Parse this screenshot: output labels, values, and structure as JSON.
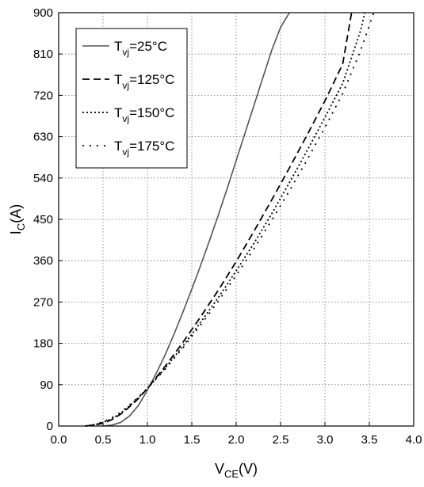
{
  "chart_data": {
    "type": "line",
    "title": "",
    "xlabel": "V",
    "xlabel_sub": "CE",
    "xlabel_unit": "(V)",
    "ylabel": "I",
    "ylabel_sub": "C",
    "ylabel_unit": "(A)",
    "xlim": [
      0,
      4
    ],
    "ylim": [
      0,
      900
    ],
    "xticks": [
      0,
      0.5,
      1,
      1.5,
      2,
      2.5,
      3,
      3.5,
      4
    ],
    "xtick_labels": [
      "0.0",
      "0.5",
      "1.0",
      "1.5",
      "2.0",
      "2.5",
      "3.0",
      "3.5",
      "4.0"
    ],
    "yticks": [
      0,
      90,
      180,
      270,
      360,
      450,
      540,
      630,
      720,
      810,
      900
    ],
    "ytick_labels": [
      "0",
      "90",
      "180",
      "270",
      "360",
      "450",
      "540",
      "630",
      "720",
      "810",
      "900"
    ],
    "grid": true,
    "legend_position": "top-left",
    "series": [
      {
        "name_main": "T",
        "name_sub": "vj",
        "name_rest": "=25°C",
        "style": "solid",
        "color": "#555555",
        "x": [
          0.5,
          0.6,
          0.7,
          0.8,
          0.9,
          1.0,
          1.1,
          1.2,
          1.3,
          1.4,
          1.5,
          1.6,
          1.7,
          1.8,
          1.9,
          2.0,
          2.1,
          2.2,
          2.3,
          2.4,
          2.5,
          2.6
        ],
        "y": [
          0,
          2,
          8,
          22,
          45,
          78,
          115,
          155,
          200,
          248,
          298,
          350,
          404,
          460,
          518,
          578,
          638,
          698,
          758,
          818,
          868,
          900
        ]
      },
      {
        "name_main": "T",
        "name_sub": "vj",
        "name_rest": "=125°C",
        "style": "dashed",
        "color": "#000000",
        "x": [
          0.3,
          0.4,
          0.5,
          0.6,
          0.7,
          0.8,
          0.9,
          1.0,
          1.2,
          1.4,
          1.6,
          1.8,
          2.0,
          2.2,
          2.4,
          2.6,
          2.8,
          3.0,
          3.2,
          3.3
        ],
        "y": [
          0,
          2,
          6,
          14,
          26,
          42,
          60,
          82,
          130,
          182,
          238,
          296,
          358,
          424,
          492,
          562,
          634,
          708,
          788,
          900
        ]
      },
      {
        "name_main": "T",
        "name_sub": "vj",
        "name_rest": "=150°C",
        "style": "dotted",
        "color": "#000000",
        "x": [
          0.3,
          0.4,
          0.5,
          0.6,
          0.7,
          0.8,
          0.9,
          1.0,
          1.2,
          1.4,
          1.6,
          1.8,
          2.0,
          2.2,
          2.4,
          2.6,
          2.8,
          3.0,
          3.2,
          3.4,
          3.45
        ],
        "y": [
          0,
          3,
          8,
          16,
          28,
          44,
          62,
          82,
          126,
          174,
          226,
          280,
          338,
          398,
          462,
          530,
          600,
          672,
          746,
          860,
          900
        ]
      },
      {
        "name_main": "T",
        "name_sub": "vj",
        "name_rest": "=175°C",
        "style": "sparse-dotted",
        "color": "#000000",
        "x": [
          0.3,
          0.4,
          0.5,
          0.6,
          0.7,
          0.8,
          0.9,
          1.0,
          1.2,
          1.4,
          1.6,
          1.8,
          2.0,
          2.2,
          2.4,
          2.6,
          2.8,
          3.0,
          3.2,
          3.4,
          3.55
        ],
        "y": [
          0,
          3,
          9,
          18,
          30,
          46,
          63,
          82,
          124,
          170,
          220,
          272,
          328,
          386,
          448,
          512,
          580,
          650,
          724,
          816,
          900
        ]
      }
    ]
  }
}
